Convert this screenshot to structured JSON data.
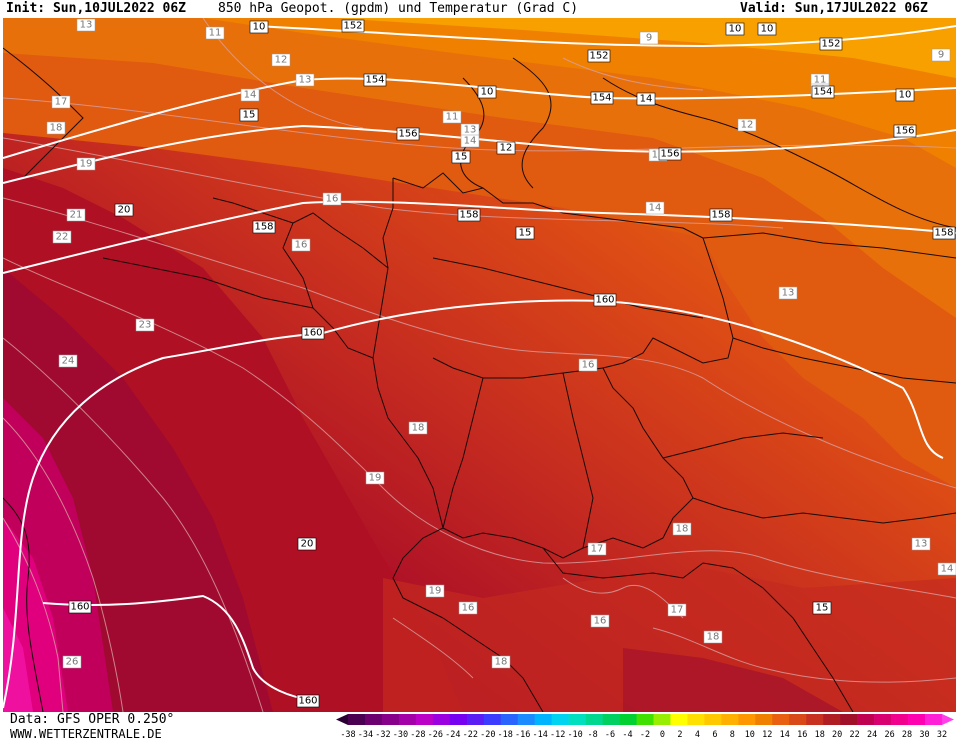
{
  "header": {
    "init": "Init: Sun,10JUL2022 06Z",
    "title": "850 hPa Geopot. (gpdm) und Temperatur (Grad C)",
    "valid": "Valid: Sun,17JUL2022 06Z"
  },
  "footer": {
    "data_source": "Data: GFS OPER 0.250°",
    "site": "WWW.WETTERZENTRALE.DE"
  },
  "colorbar": {
    "ticks": [
      "-38",
      "-34",
      "-32",
      "-30",
      "-28",
      "-26",
      "-24",
      "-22",
      "-20",
      "-18",
      "-16",
      "-14",
      "-12",
      "-10",
      "-8",
      "-6",
      "-4",
      "-2",
      "0",
      "2",
      "4",
      "6",
      "8",
      "10",
      "12",
      "14",
      "16",
      "18",
      "20",
      "22",
      "24",
      "26",
      "28",
      "30",
      "32"
    ],
    "colors": [
      "#4b0052",
      "#6b006e",
      "#86008a",
      "#a300a8",
      "#bb00c8",
      "#9a00e0",
      "#7600f0",
      "#5a1ef5",
      "#3c3cff",
      "#2a64ff",
      "#1a8cff",
      "#00b4ff",
      "#00d4f0",
      "#00e0c0",
      "#00d890",
      "#00d060",
      "#00d030",
      "#40e000",
      "#98ee00",
      "#ffff00",
      "#ffe000",
      "#ffc800",
      "#ffb000",
      "#ff9800",
      "#f08000",
      "#e86010",
      "#d84818",
      "#c83020",
      "#b01e24",
      "#a01028",
      "#c00050",
      "#d80070",
      "#f0008c",
      "#ff00b0",
      "#ff20d8"
    ],
    "arrow_colors": {
      "left": "#2a0033",
      "right": "#ff40e8"
    }
  },
  "map": {
    "geopotential_labels": [
      {
        "text": "152"
      },
      {
        "text": "152"
      },
      {
        "text": "152"
      },
      {
        "text": "154"
      },
      {
        "text": "154"
      },
      {
        "text": "154"
      },
      {
        "text": "156"
      },
      {
        "text": "156"
      },
      {
        "text": "156"
      },
      {
        "text": "158"
      },
      {
        "text": "158"
      },
      {
        "text": "158"
      },
      {
        "text": "158"
      },
      {
        "text": "160"
      },
      {
        "text": "160"
      },
      {
        "text": "160"
      },
      {
        "text": "160"
      }
    ],
    "temperature_labels_black": [
      {
        "text": "10"
      },
      {
        "text": "10"
      },
      {
        "text": "10"
      },
      {
        "text": "10"
      },
      {
        "text": "10"
      },
      {
        "text": "15"
      },
      {
        "text": "15"
      },
      {
        "text": "15"
      },
      {
        "text": "15"
      },
      {
        "text": "20"
      },
      {
        "text": "20"
      },
      {
        "text": "12"
      },
      {
        "text": "14"
      }
    ],
    "temperature_labels_grey": [
      {
        "text": "13"
      },
      {
        "text": "11"
      },
      {
        "text": "12"
      },
      {
        "text": "13"
      },
      {
        "text": "14"
      },
      {
        "text": "17"
      },
      {
        "text": "18"
      },
      {
        "text": "19"
      },
      {
        "text": "21"
      },
      {
        "text": "22"
      },
      {
        "text": "23"
      },
      {
        "text": "24"
      },
      {
        "text": "26"
      },
      {
        "text": "9"
      },
      {
        "text": "9"
      },
      {
        "text": "11"
      },
      {
        "text": "11"
      },
      {
        "text": "12"
      },
      {
        "text": "13"
      },
      {
        "text": "14"
      },
      {
        "text": "15"
      },
      {
        "text": "16"
      },
      {
        "text": "16"
      },
      {
        "text": "14"
      },
      {
        "text": "13"
      },
      {
        "text": "16"
      },
      {
        "text": "18"
      },
      {
        "text": "19"
      },
      {
        "text": "18"
      },
      {
        "text": "17"
      },
      {
        "text": "16"
      },
      {
        "text": "17"
      },
      {
        "text": "18"
      },
      {
        "text": "16"
      },
      {
        "text": "18"
      },
      {
        "text": "19"
      },
      {
        "text": "13"
      },
      {
        "text": "14"
      },
      {
        "text": "11"
      }
    ]
  }
}
